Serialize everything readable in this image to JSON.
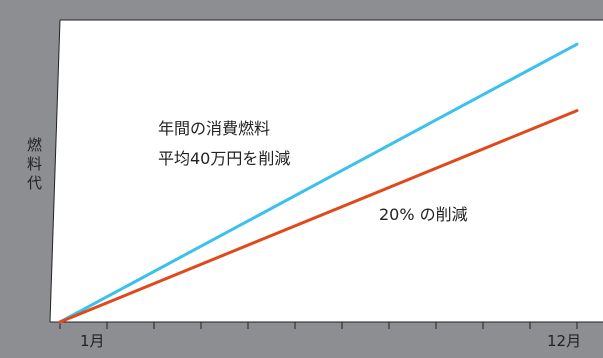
{
  "chart_data": {
    "type": "line",
    "title": "",
    "xlabel": "",
    "ylabel": "燃料代",
    "x": [
      1,
      12
    ],
    "xlim": [
      1,
      12
    ],
    "ylim": [
      0,
      100
    ],
    "tick_labels": {
      "start": "1月",
      "end": "12月"
    },
    "series": [
      {
        "values": [
          0,
          92
        ],
        "color": "#3cc0ec"
      },
      {
        "values": [
          0,
          70
        ],
        "color": "#e04a1b"
      }
    ],
    "annotations": [
      {
        "lines": [
          "年間の消費燃料",
          "平均40万円を削減"
        ]
      },
      {
        "lines": [
          "20% の削減"
        ]
      }
    ],
    "grid": false,
    "legend": "none"
  },
  "colors": {
    "frame": "#8c8e91",
    "plot_background": "#ffffff",
    "axis": "#222222"
  }
}
